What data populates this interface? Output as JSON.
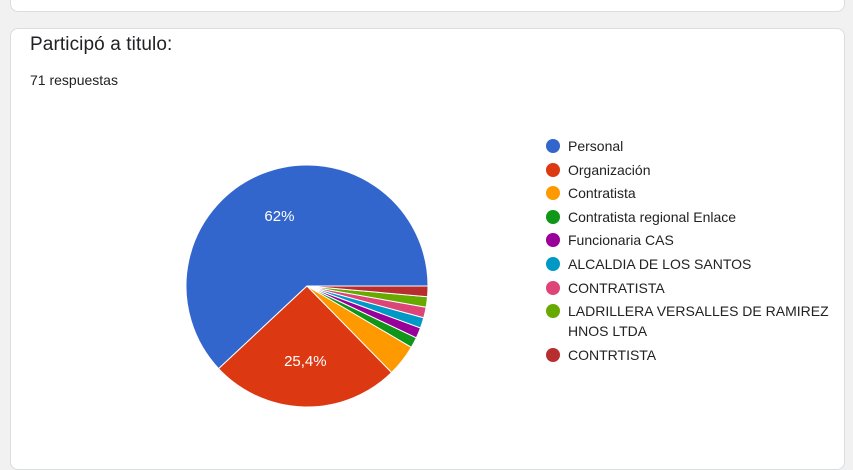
{
  "question": {
    "title": "Participó a titulo:",
    "responses_label": "71 respuestas"
  },
  "chart_data": {
    "type": "pie",
    "total_responses": 71,
    "slices": [
      {
        "label": "Personal",
        "count": 44,
        "percent_label": "62%",
        "color": "#3366cc"
      },
      {
        "label": "Organización",
        "count": 18,
        "percent_label": "25,4%",
        "color": "#dc3912"
      },
      {
        "label": "Contratista",
        "count": 3,
        "percent_label": "",
        "color": "#ff9900"
      },
      {
        "label": "Contratista regional Enlace",
        "count": 1,
        "percent_label": "",
        "color": "#109618"
      },
      {
        "label": "Funcionaria CAS",
        "count": 1,
        "percent_label": "",
        "color": "#990099"
      },
      {
        "label": "ALCALDIA DE LOS SANTOS",
        "count": 1,
        "percent_label": "",
        "color": "#0099c6"
      },
      {
        "label": "CONTRATISTA",
        "count": 1,
        "percent_label": "",
        "color": "#dd4477"
      },
      {
        "label": "LADRILLERA VERSALLES DE RAMIREZ HNOS LTDA",
        "count": 1,
        "percent_label": "",
        "color": "#66aa00"
      },
      {
        "label": "CONTRTISTA",
        "count": 1,
        "percent_label": "",
        "color": "#b82e2e"
      }
    ],
    "legend_position": "right"
  }
}
